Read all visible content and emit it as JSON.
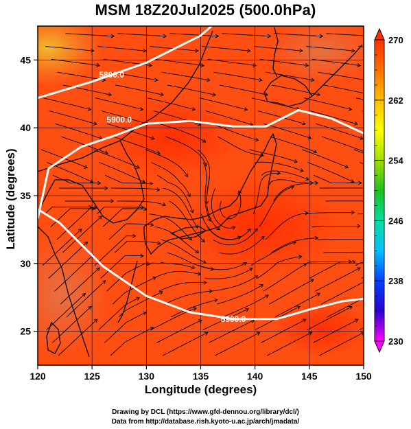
{
  "title": "MSM 18Z20Jul2025 (500.0hPa)",
  "xlabel": "Longitude (degrees)",
  "ylabel": "Latitude  (degrees)",
  "credits": {
    "line1": "Drawing by DCL (https://www.gfd-dennou.org/library/dcl/)",
    "line2": "Data from http://database.rish.kyoto-u.ac.jp/arch/jmadata/"
  },
  "chart_data": {
    "type": "heatmap",
    "xlim": [
      120,
      150
    ],
    "ylim": [
      22.5,
      47.5
    ],
    "x_ticks": [
      120,
      125,
      130,
      135,
      140,
      145,
      150
    ],
    "y_ticks": [
      25,
      30,
      35,
      40,
      45
    ],
    "grid": true,
    "colorbar": {
      "min": 230,
      "max": 270,
      "tick_labels": [
        270,
        262,
        254,
        246,
        238,
        230
      ],
      "placement": "right",
      "stops": [
        "#ff00ff",
        "#2a00d0",
        "#0040ff",
        "#00c0ff",
        "#00e0a0",
        "#20c020",
        "#a0e000",
        "#ffff00",
        "#ffc000",
        "#ff7000",
        "#ff3000"
      ]
    },
    "contours": [
      {
        "label": "5800.0",
        "path": [
          [
            120,
            42.2
          ],
          [
            125,
            43.4
          ],
          [
            130,
            44.8
          ],
          [
            135,
            46.8
          ],
          [
            136,
            47.5
          ]
        ]
      },
      {
        "label": "5900.0",
        "path": [
          [
            120,
            33.3
          ],
          [
            121,
            37.0
          ],
          [
            124,
            38.6
          ],
          [
            127,
            39.4
          ],
          [
            130,
            40.3
          ],
          [
            134,
            40.5
          ],
          [
            138,
            40.1
          ],
          [
            141,
            40.1
          ],
          [
            144,
            41.3
          ],
          [
            147,
            40.7
          ],
          [
            150,
            39.6
          ]
        ]
      },
      {
        "label": "5900.0",
        "path": [
          [
            120,
            34.0
          ],
          [
            122,
            33.0
          ],
          [
            126,
            29.8
          ],
          [
            130,
            27.6
          ],
          [
            134,
            26.4
          ],
          [
            138,
            25.9
          ],
          [
            142,
            25.9
          ],
          [
            145,
            26.6
          ],
          [
            148,
            27.2
          ],
          [
            150,
            27.4
          ]
        ]
      }
    ],
    "field_colors": {
      "warm": "#ff3a00",
      "mid": "#ff5a1a",
      "cool": "#e88a22",
      "coolest": "#e0b030"
    },
    "vector_field": "streamlines"
  }
}
